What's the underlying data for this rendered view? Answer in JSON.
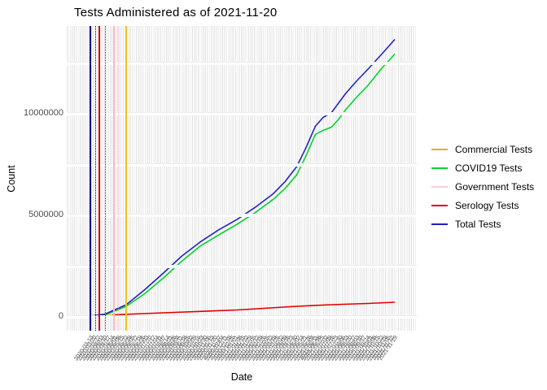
{
  "title": "Tests Administered as of 2021-11-20",
  "y_axis": {
    "label": "Count",
    "ticks": [
      {
        "label": "0",
        "value": 0
      },
      {
        "label": "5000000",
        "value": 5000000
      },
      {
        "label": "10000000",
        "value": 10000000
      }
    ]
  },
  "x_axis": {
    "label": "Date",
    "start_date": "2020-03-13",
    "end_date": "2021-11-20",
    "tick_step_days": 7
  },
  "legend": {
    "items": [
      {
        "label": "Commercial Tests",
        "color": "#f0a43c"
      },
      {
        "label": "COVID19 Tests",
        "color": "#00d42a"
      },
      {
        "label": "Government Tests",
        "color": "#ffccd4"
      },
      {
        "label": "Serology Tests",
        "color": "#dd0000"
      },
      {
        "label": "Total Tests",
        "color": "#1d1dc0"
      }
    ]
  },
  "chart_data": {
    "type": "line",
    "title": "Tests Administered as of 2021-11-20",
    "xlabel": "Date",
    "ylabel": "Count",
    "ylim": [
      0,
      14000000
    ],
    "x_range": [
      "2020-03-13",
      "2021-11-20"
    ],
    "grid": "dense vertical gridline per date category; horizontal gridlines every 2500000",
    "gridline_values": [
      0,
      2500000,
      5000000,
      7500000,
      10000000,
      12500000
    ],
    "legend_position": "right",
    "series": [
      {
        "name": "Government Tests",
        "color": "#ffccd4",
        "points": [
          [
            "2020-03-13",
            10000
          ],
          [
            "2020-05-30",
            20000
          ]
        ]
      },
      {
        "name": "Commercial Tests",
        "color": "#f0a43c",
        "points": [
          [
            "2020-03-28",
            30000
          ],
          [
            "2020-05-25",
            60000
          ]
        ]
      },
      {
        "name": "Serology Tests",
        "color": "#dd0000",
        "points": [
          [
            "2020-04-27",
            60000
          ],
          [
            "2020-08-08",
            160000
          ],
          [
            "2021-01-04",
            300000
          ],
          [
            "2021-05-05",
            480000
          ],
          [
            "2021-07-15",
            560000
          ],
          [
            "2021-09-26",
            620000
          ],
          [
            "2021-11-20",
            680000
          ]
        ]
      },
      {
        "name": "COVID19 Tests",
        "color": "#00d42a",
        "points": [
          [
            "2020-03-13",
            0
          ],
          [
            "2020-04-12",
            60000
          ],
          [
            "2020-05-25",
            480000
          ],
          [
            "2020-07-01",
            1100000
          ],
          [
            "2020-08-08",
            1880000
          ],
          [
            "2020-09-14",
            2700000
          ],
          [
            "2020-10-21",
            3440000
          ],
          [
            "2020-11-28",
            4000000
          ],
          [
            "2021-01-04",
            4520000
          ],
          [
            "2021-02-10",
            5100000
          ],
          [
            "2021-03-19",
            5760000
          ],
          [
            "2021-04-12",
            6300000
          ],
          [
            "2021-05-05",
            6960000
          ],
          [
            "2021-05-24",
            7900000
          ],
          [
            "2021-06-12",
            8960000
          ],
          [
            "2021-06-28",
            9160000
          ],
          [
            "2021-07-15",
            9320000
          ],
          [
            "2021-07-29",
            9700000
          ],
          [
            "2021-08-12",
            10160000
          ],
          [
            "2021-09-04",
            10800000
          ],
          [
            "2021-09-26",
            11360000
          ],
          [
            "2021-10-24",
            12200000
          ],
          [
            "2021-11-20",
            12920000
          ]
        ]
      },
      {
        "name": "Total Tests",
        "color": "#2222cc",
        "points": [
          [
            "2020-03-13",
            0
          ],
          [
            "2020-04-12",
            100000
          ],
          [
            "2020-05-25",
            560000
          ],
          [
            "2020-07-01",
            1300000
          ],
          [
            "2020-08-08",
            2120000
          ],
          [
            "2020-09-14",
            2950000
          ],
          [
            "2020-10-21",
            3640000
          ],
          [
            "2020-11-28",
            4250000
          ],
          [
            "2021-01-04",
            4760000
          ],
          [
            "2021-02-10",
            5360000
          ],
          [
            "2021-03-19",
            6040000
          ],
          [
            "2021-04-12",
            6640000
          ],
          [
            "2021-05-05",
            7360000
          ],
          [
            "2021-05-24",
            8300000
          ],
          [
            "2021-06-12",
            9360000
          ],
          [
            "2021-06-28",
            9800000
          ],
          [
            "2021-07-15",
            10040000
          ],
          [
            "2021-07-29",
            10500000
          ],
          [
            "2021-08-12",
            10960000
          ],
          [
            "2021-09-04",
            11600000
          ],
          [
            "2021-09-26",
            12160000
          ],
          [
            "2021-10-24",
            12900000
          ],
          [
            "2021-11-20",
            13640000
          ]
        ]
      }
    ],
    "vlines": [
      {
        "color": "#000088",
        "style": "solid",
        "x_fraction": 0.0
      },
      {
        "color": "#000088",
        "style": "dotted",
        "x_fraction": 0.019
      },
      {
        "color": "#cc0000",
        "style": "solid",
        "x_fraction": 0.03
      },
      {
        "color": "#cc0000",
        "style": "dotted",
        "x_fraction": 0.051
      },
      {
        "color": "#ffb3c0",
        "style": "solid",
        "x_fraction": 0.078
      },
      {
        "color": "#ffb3c0",
        "style": "dotted",
        "x_fraction": 0.094
      },
      {
        "color": "#f2c21c",
        "style": "solid",
        "x_fraction": 0.118
      }
    ]
  }
}
